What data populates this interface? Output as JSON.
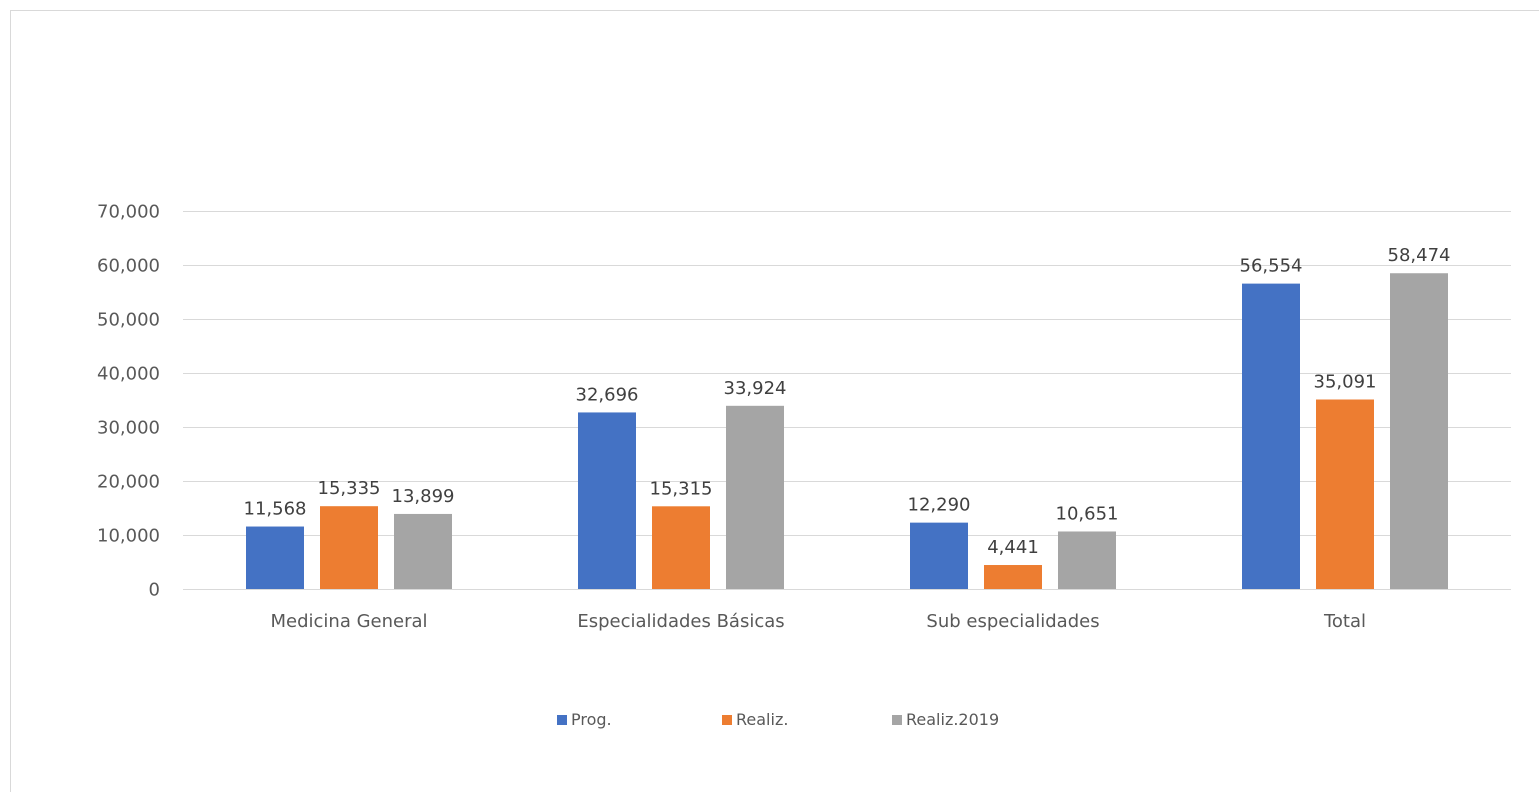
{
  "chart_data": {
    "type": "bar",
    "title": "",
    "xlabel": "",
    "ylabel": "",
    "categories": [
      "Medicina General",
      "Especialidades Básicas",
      "Sub especialidades",
      "Total"
    ],
    "series": [
      {
        "name": "Prog.",
        "color": "#4472C4",
        "values": [
          11568,
          32696,
          12290,
          56554
        ],
        "labels": [
          "11,568",
          "32,696",
          "12,290",
          "56,554"
        ]
      },
      {
        "name": "Realiz.",
        "color": "#ED7D31",
        "values": [
          15335,
          15315,
          4441,
          35091
        ],
        "labels": [
          "15,335",
          "15,315",
          "4,441",
          "35,091"
        ]
      },
      {
        "name": "Realiz.2019",
        "color": "#A5A5A5",
        "values": [
          13899,
          33924,
          10651,
          58474
        ],
        "labels": [
          "13,899",
          "33,924",
          "10,651",
          "58,474"
        ]
      }
    ],
    "ylim": [
      0,
      70000
    ],
    "yticks": [
      0,
      10000,
      20000,
      30000,
      40000,
      50000,
      60000,
      70000
    ],
    "ytick_labels": [
      "0",
      "10,000",
      "20,000",
      "30,000",
      "40,000",
      "50,000",
      "60,000",
      "70,000"
    ],
    "grid": true,
    "legend_position": "bottom"
  }
}
